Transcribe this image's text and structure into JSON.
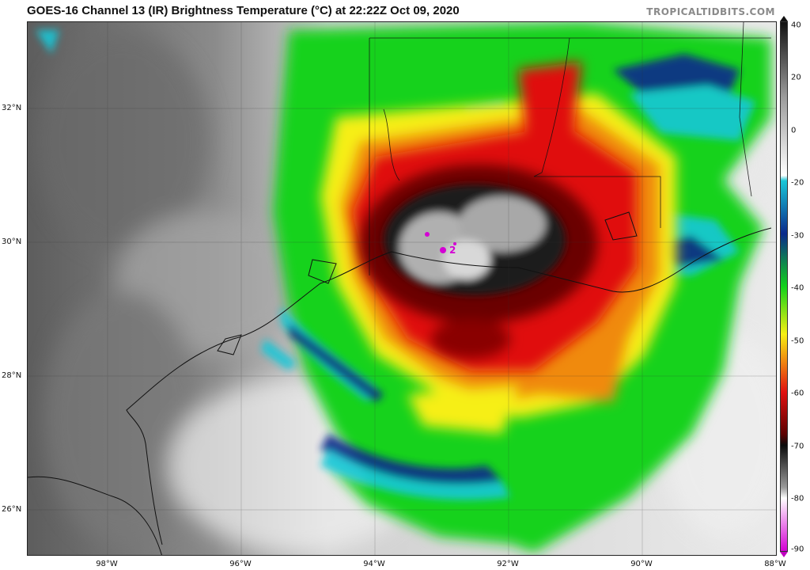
{
  "header": {
    "title": "GOES-16 Channel 13 (IR) Brightness Temperature (°C) at 22:22Z Oct 09, 2020",
    "credit": "TROPICALTIDBITS.COM"
  },
  "map": {
    "latitude_labels": [
      {
        "label": "32°N",
        "value": 32
      },
      {
        "label": "30°N",
        "value": 30
      },
      {
        "label": "28°N",
        "value": 28
      },
      {
        "label": "26°N",
        "value": 26
      }
    ],
    "longitude_labels": [
      {
        "label": "98°W",
        "value": -98
      },
      {
        "label": "96°W",
        "value": -96
      },
      {
        "label": "94°W",
        "value": -94
      },
      {
        "label": "92°W",
        "value": -92
      },
      {
        "label": "90°W",
        "value": -90
      },
      {
        "label": "88°W",
        "value": -88
      }
    ],
    "storm_marker": "2"
  },
  "colorbar": {
    "ticks": [
      "40",
      "20",
      "0",
      "-20",
      "-30",
      "-40",
      "-50",
      "-60",
      "-70",
      "-80",
      "-90"
    ],
    "colors": {
      "warm_top": "#111111",
      "gray": "#9a9a9a",
      "white": "#ffffff",
      "cyan": "#19c7d8",
      "blue": "#0b2a8c",
      "green": "#11d21a",
      "yellow": "#f6ef12",
      "orange": "#f08a10",
      "red": "#e01010",
      "darkred": "#5a0000",
      "black": "#0a0a0a",
      "magenta": "#d400d4"
    }
  }
}
